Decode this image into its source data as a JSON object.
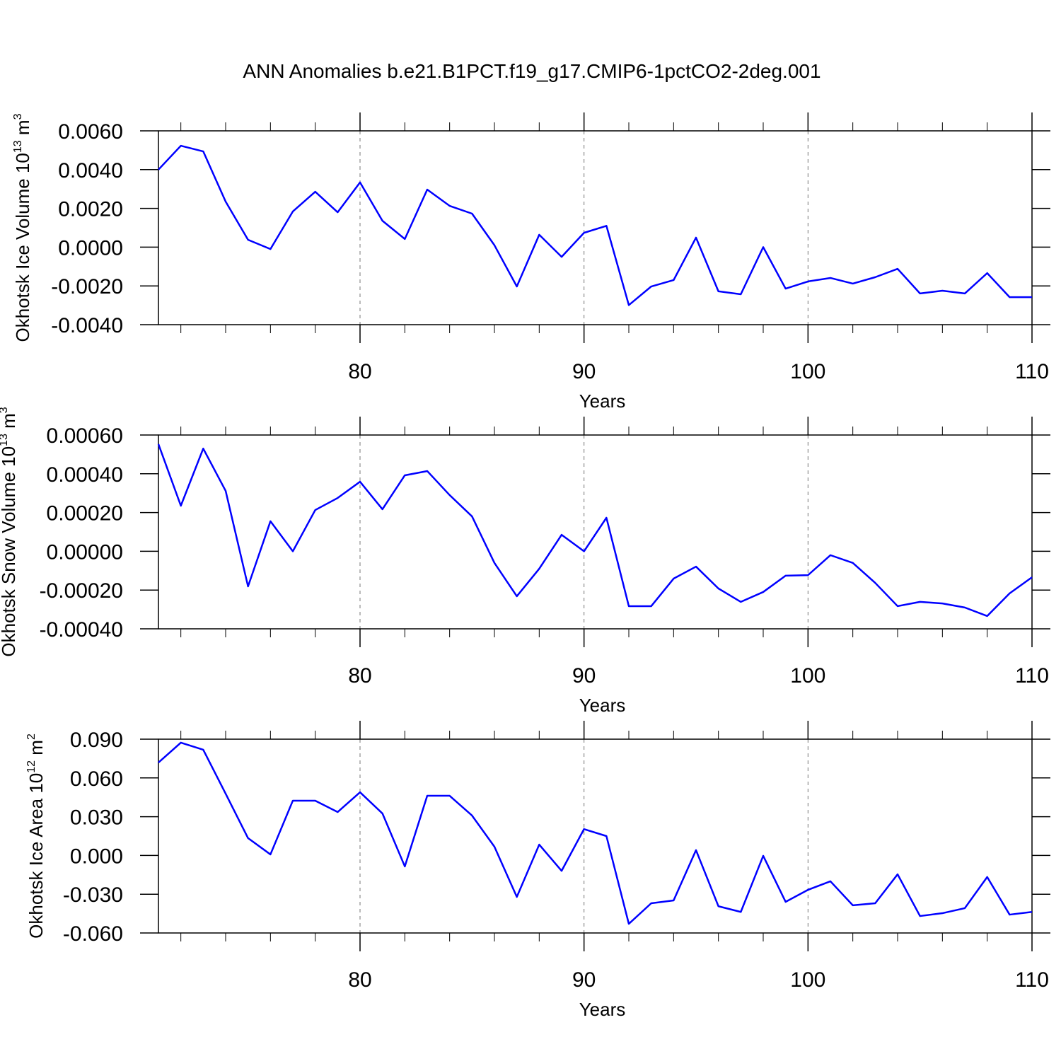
{
  "title": "ANN Anomalies b.e21.B1PCT.f19_g17.CMIP6-1pctCO2-2deg.001",
  "chart_data": [
    {
      "type": "line",
      "color": "#0000ff",
      "grid": true,
      "xlabel": "Years",
      "ylabel": {
        "text": "Okhotsk Ice Volume 10",
        "exp": "13",
        "unit": " m",
        "unit_exp": "3"
      },
      "x": [
        71,
        72,
        73,
        74,
        75,
        76,
        77,
        78,
        79,
        80,
        81,
        82,
        83,
        84,
        85,
        86,
        87,
        88,
        89,
        90,
        91,
        92,
        93,
        94,
        95,
        96,
        97,
        98,
        99,
        100,
        101,
        102,
        103,
        104,
        105,
        106,
        107,
        108,
        109,
        110
      ],
      "values": [
        0.004,
        0.00523,
        0.00494,
        0.00235,
        0.00038,
        -0.0001,
        0.00184,
        0.00286,
        0.0018,
        0.00334,
        0.00136,
        0.00042,
        0.00297,
        0.00213,
        0.00173,
        0.0001,
        -0.00203,
        0.00064,
        -0.0005,
        0.00074,
        0.0011,
        -0.00299,
        -0.00203,
        -0.0017,
        0.00049,
        -0.00228,
        -0.00243,
        0.0,
        -0.00214,
        -0.00177,
        -0.00159,
        -0.00188,
        -0.00155,
        -0.00112,
        -0.00239,
        -0.00225,
        -0.00239,
        -0.00134,
        -0.00258,
        -0.00258
      ],
      "xlim": [
        71,
        110
      ],
      "xticks": [
        80,
        90,
        100,
        110
      ],
      "xminorticks": [
        72,
        74,
        76,
        78,
        82,
        84,
        86,
        88,
        92,
        94,
        96,
        98,
        102,
        104,
        106,
        108
      ],
      "ylim": [
        -0.004,
        0.006
      ],
      "yticks": [
        {
          "value": -0.004,
          "label": "-0.0040"
        },
        {
          "value": -0.002,
          "label": "-0.0020"
        },
        {
          "value": 0,
          "label": "0.0000"
        },
        {
          "value": 0.002,
          "label": "0.0020"
        },
        {
          "value": 0.004,
          "label": "0.0040"
        },
        {
          "value": 0.006,
          "label": "0.0060"
        }
      ]
    },
    {
      "type": "line",
      "color": "#0000ff",
      "grid": true,
      "xlabel": "Years",
      "ylabel": {
        "text": "Okhotsk Snow Volume 10",
        "exp": "13",
        "unit": " m",
        "unit_exp": "3"
      },
      "x": [
        71,
        72,
        73,
        74,
        75,
        76,
        77,
        78,
        79,
        80,
        81,
        82,
        83,
        84,
        85,
        86,
        87,
        88,
        89,
        90,
        91,
        92,
        93,
        94,
        95,
        96,
        97,
        98,
        99,
        100,
        101,
        102,
        103,
        104,
        105,
        106,
        107,
        108,
        109,
        110
      ],
      "values": [
        0.000553,
        0.000235,
        0.00053,
        0.000312,
        -0.000181,
        0.000155,
        0.0,
        0.000213,
        0.000275,
        0.000359,
        0.000217,
        0.000392,
        0.000414,
        0.00029,
        0.00018,
        -6e-05,
        -0.000232,
        -9e-05,
        8.5e-05,
        0.0,
        0.000173,
        -0.000283,
        -0.000283,
        -0.000141,
        -7.9e-05,
        -0.000192,
        -0.000261,
        -0.00021,
        -0.000126,
        -0.000123,
        -2e-05,
        -6e-05,
        -0.000163,
        -0.000283,
        -0.000261,
        -0.000269,
        -0.00029,
        -0.000334,
        -0.000217,
        -0.000134
      ],
      "xlim": [
        71,
        110
      ],
      "xticks": [
        80,
        90,
        100,
        110
      ],
      "xminorticks": [
        72,
        74,
        76,
        78,
        82,
        84,
        86,
        88,
        92,
        94,
        96,
        98,
        102,
        104,
        106,
        108
      ],
      "ylim": [
        -0.0004,
        0.0006
      ],
      "yticks": [
        {
          "value": -0.0004,
          "label": "-0.00040"
        },
        {
          "value": -0.0002,
          "label": "-0.00020"
        },
        {
          "value": 0,
          "label": "0.00000"
        },
        {
          "value": 0.0002,
          "label": "0.00020"
        },
        {
          "value": 0.0004,
          "label": "0.00040"
        },
        {
          "value": 0.0006,
          "label": "0.00060"
        }
      ]
    },
    {
      "type": "line",
      "color": "#0000ff",
      "grid": true,
      "xlabel": "Years",
      "ylabel": {
        "text": "Okhotsk Ice Area 10",
        "exp": "12",
        "unit": " m",
        "unit_exp": "2"
      },
      "x": [
        71,
        72,
        73,
        74,
        75,
        76,
        77,
        78,
        79,
        80,
        81,
        82,
        83,
        84,
        85,
        86,
        87,
        88,
        89,
        90,
        91,
        92,
        93,
        94,
        95,
        96,
        97,
        98,
        99,
        100,
        101,
        102,
        103,
        104,
        105,
        106,
        107,
        108,
        109,
        110
      ],
      "values": [
        0.0719,
        0.0873,
        0.0818,
        0.0478,
        0.0134,
        0.0008,
        0.0424,
        0.0424,
        0.0336,
        0.0489,
        0.0325,
        -0.0085,
        0.0462,
        0.0462,
        0.0309,
        0.0068,
        -0.0321,
        0.0084,
        -0.0119,
        0.0204,
        0.015,
        -0.0529,
        -0.037,
        -0.0348,
        0.0041,
        -0.0393,
        -0.0437,
        -0.0003,
        -0.0359,
        -0.0266,
        -0.02,
        -0.0386,
        -0.037,
        -0.0146,
        -0.0469,
        -0.0447,
        -0.0408,
        -0.0167,
        -0.0458,
        -0.0437
      ],
      "xlim": [
        71,
        110
      ],
      "xticks": [
        80,
        90,
        100,
        110
      ],
      "xminorticks": [
        72,
        74,
        76,
        78,
        82,
        84,
        86,
        88,
        92,
        94,
        96,
        98,
        102,
        104,
        106,
        108
      ],
      "ylim": [
        -0.06,
        0.09
      ],
      "yticks": [
        {
          "value": -0.06,
          "label": "-0.060"
        },
        {
          "value": -0.03,
          "label": "-0.030"
        },
        {
          "value": 0,
          "label": "0.000"
        },
        {
          "value": 0.03,
          "label": "0.030"
        },
        {
          "value": 0.06,
          "label": "0.060"
        },
        {
          "value": 0.09,
          "label": "0.090"
        }
      ]
    }
  ]
}
